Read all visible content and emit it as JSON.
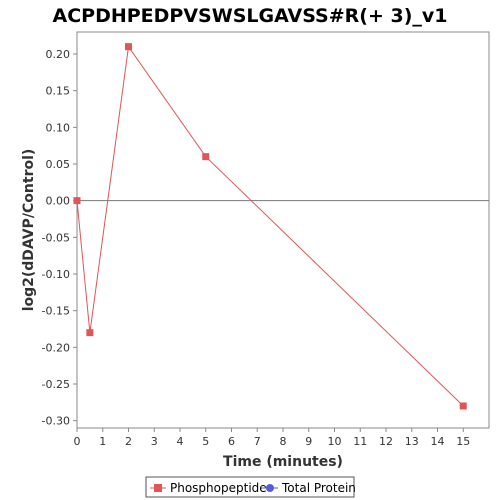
{
  "chart_data": {
    "type": "line",
    "title": "ACPDHPEDPVSWSLGAVSS#R(+ 3)_v1",
    "xlabel": "Time (minutes)",
    "ylabel": "log2(dDAVP/Control)",
    "xlim": [
      0,
      16
    ],
    "ylim": [
      -0.31,
      0.23
    ],
    "x_ticks": [
      0,
      1,
      2,
      3,
      4,
      5,
      6,
      7,
      8,
      9,
      10,
      11,
      12,
      13,
      14,
      15
    ],
    "x_tick_labels": [
      "0",
      "1",
      "2",
      "3",
      "4",
      "5",
      "6",
      "7",
      "8",
      "9",
      "10",
      "11",
      "12",
      "13",
      "14",
      "15"
    ],
    "y_ticks": [
      0.2,
      0.15,
      0.1,
      0.05,
      0.0,
      -0.05,
      -0.1,
      -0.15,
      -0.2,
      -0.25,
      -0.3
    ],
    "y_tick_labels": [
      "0.20",
      "0.15",
      "0.10",
      "0.05",
      "0.00",
      "-0.05",
      "-0.10",
      "-0.15",
      "-0.20",
      "-0.25",
      "-0.30"
    ],
    "zero_line": true,
    "grid": false,
    "series": [
      {
        "name": "Phosphopeptide",
        "color": "#e05555",
        "marker": "square",
        "x": [
          0,
          0.5,
          2,
          5,
          15
        ],
        "y": [
          0.0,
          -0.18,
          0.21,
          0.06,
          -0.28
        ]
      },
      {
        "name": "Total Protein",
        "color": "#5a5ae0",
        "marker": "circle",
        "x": [],
        "y": []
      }
    ],
    "legend_position": "bottom-center"
  }
}
